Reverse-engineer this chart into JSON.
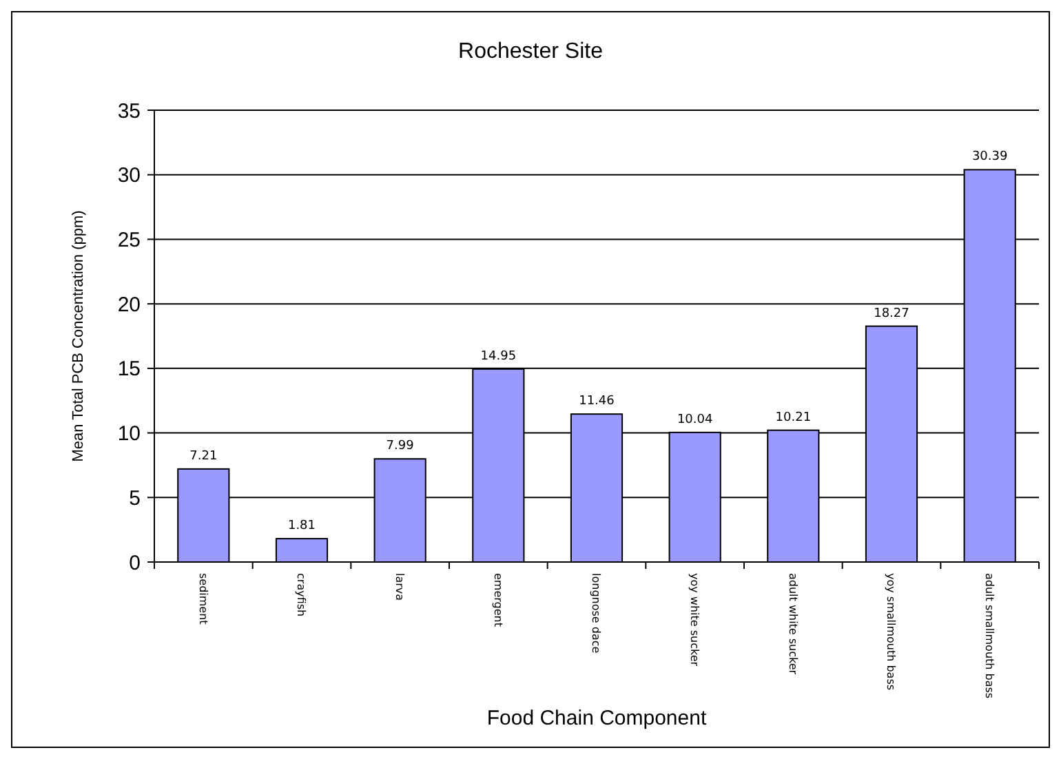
{
  "chart_data": {
    "type": "bar",
    "title": "Rochester Site",
    "xlabel": "Food Chain Component",
    "ylabel": "Mean Total PCB Concentration (ppm)",
    "categories": [
      "sediment",
      "crayfish",
      "larva",
      "emergent",
      "longnose dace",
      "yoy white sucker",
      "adult white sucker",
      "yoy smallmouth bass",
      "adult smallmouth bass"
    ],
    "values": [
      7.21,
      1.81,
      7.99,
      14.95,
      11.46,
      10.04,
      10.21,
      18.27,
      30.39
    ],
    "color": "#9999ff",
    "ylim": [
      0,
      35
    ],
    "yticks": [
      0,
      5,
      10,
      15,
      20,
      25,
      30,
      35
    ],
    "grid": "y",
    "data_labels": true
  }
}
